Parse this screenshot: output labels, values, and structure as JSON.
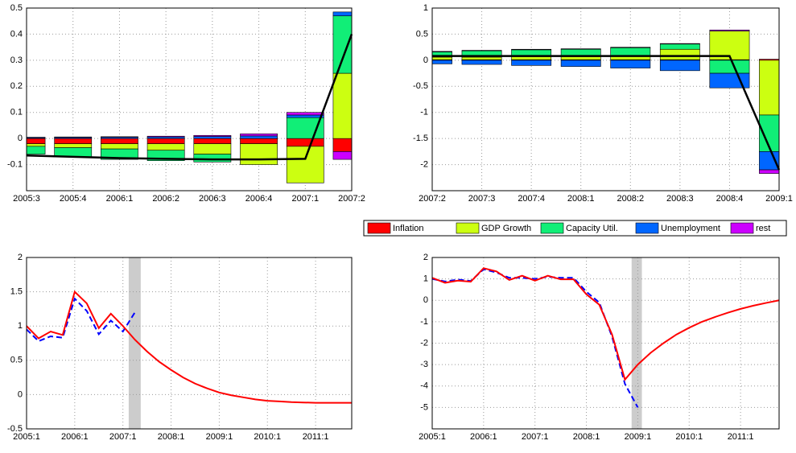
{
  "chart_data": [
    {
      "type": "bar",
      "stacked": true,
      "grid": true,
      "categories": [
        "2005:3",
        "2005:4",
        "2006:1",
        "2006:2",
        "2006:3",
        "2006:4",
        "2007:1",
        "2007:2"
      ],
      "series": [
        {
          "name": "Inflation",
          "color": "#ff0000",
          "values": [
            -0.02,
            -0.02,
            -0.02,
            -0.02,
            -0.02,
            -0.02,
            -0.03,
            -0.05
          ]
        },
        {
          "name": "GDP Growth",
          "color": "#ccff11",
          "values": [
            -0.01,
            -0.015,
            -0.02,
            -0.025,
            -0.04,
            -0.08,
            -0.14,
            0.25
          ]
        },
        {
          "name": "Capacity Util.",
          "color": "#11ee77",
          "values": [
            -0.03,
            -0.035,
            -0.04,
            -0.04,
            -0.03,
            0,
            0.08,
            0.22
          ]
        },
        {
          "name": "Unemployment",
          "color": "#0066ff",
          "values": [
            0.003,
            0.004,
            0.005,
            0.006,
            0.008,
            0.01,
            0.01,
            0.015
          ]
        },
        {
          "name": "rest",
          "color": "#cc00ff",
          "values": [
            0.002,
            0.002,
            0.002,
            0.003,
            0.004,
            0.008,
            0.01,
            -0.03
          ]
        }
      ],
      "line": {
        "color": "#000000",
        "values": [
          -0.065,
          -0.07,
          -0.075,
          -0.078,
          -0.08,
          -0.08,
          -0.078,
          0.4
        ]
      },
      "ylim": [
        -0.2,
        0.5
      ],
      "yticks": [
        -0.1,
        0,
        0.1,
        0.2,
        0.3,
        0.4,
        0.5
      ]
    },
    {
      "type": "bar",
      "stacked": true,
      "grid": true,
      "categories": [
        "2007:2",
        "2007:3",
        "2007:4",
        "2008:1",
        "2008:2",
        "2008:3",
        "2008:4",
        "2009:1"
      ],
      "series": [
        {
          "color": "#ff0000",
          "values": [
            0.01,
            0.01,
            0.01,
            0.01,
            0.01,
            0.01,
            0.01,
            0.02
          ]
        },
        {
          "color": "#ccff11",
          "values": [
            0.05,
            0.05,
            0.06,
            0.06,
            0.08,
            0.2,
            0.55,
            -1.05
          ]
        },
        {
          "color": "#11ee77",
          "values": [
            0.1,
            0.12,
            0.13,
            0.14,
            0.15,
            0.1,
            -0.25,
            -0.7
          ]
        },
        {
          "color": "#0066ff",
          "values": [
            -0.07,
            -0.08,
            -0.1,
            -0.12,
            -0.15,
            -0.2,
            -0.28,
            -0.35
          ]
        },
        {
          "color": "#cc00ff",
          "values": [
            0.01,
            0.01,
            0.01,
            0.01,
            0.01,
            0.01,
            0.02,
            -0.07
          ]
        }
      ],
      "line": {
        "color": "#000000",
        "values": [
          0.08,
          0.08,
          0.08,
          0.08,
          0.08,
          0.08,
          0.08,
          -2.1
        ]
      },
      "ylim": [
        -2.5,
        1
      ],
      "yticks": [
        -2,
        -1.5,
        -1,
        -0.5,
        0,
        0.5,
        1
      ]
    },
    {
      "type": "line",
      "grid": true,
      "x": [
        2005,
        2005.25,
        2005.5,
        2005.75,
        2006,
        2006.25,
        2006.5,
        2006.75,
        2007,
        2007.25,
        2007.5,
        2007.75,
        2008,
        2008.25,
        2008.5,
        2008.75,
        2009,
        2009.25,
        2009.5,
        2009.75,
        2010,
        2010.25,
        2010.5,
        2010.75,
        2011,
        2011.25,
        2011.5,
        2011.75
      ],
      "series": [
        {
          "color": "#0000ff",
          "dashed": true,
          "values": [
            0.95,
            0.78,
            0.85,
            0.83,
            1.4,
            1.22,
            0.88,
            1.08,
            0.92,
            1.2,
            null,
            null,
            null,
            null,
            null,
            null,
            null,
            null,
            null,
            null,
            null,
            null,
            null,
            null,
            null,
            null,
            null,
            null
          ]
        },
        {
          "color": "#ff0000",
          "values": [
            1.0,
            0.82,
            0.92,
            0.87,
            1.5,
            1.33,
            0.97,
            1.18,
            1.0,
            0.8,
            0.63,
            0.48,
            0.36,
            0.25,
            0.16,
            0.09,
            0.03,
            -0.01,
            -0.04,
            -0.07,
            -0.09,
            -0.1,
            -0.11,
            -0.115,
            -0.12,
            -0.12,
            -0.12,
            -0.12
          ]
        }
      ],
      "shade": [
        2007.12,
        2007.37
      ],
      "xlim": [
        2005,
        2011.75
      ],
      "xticks": [
        {
          "value": 2005,
          "label": "2005:1"
        },
        {
          "value": 2006,
          "label": "2006:1"
        },
        {
          "value": 2007,
          "label": "2007:1"
        },
        {
          "value": 2008,
          "label": "2008:1"
        },
        {
          "value": 2009,
          "label": "2009:1"
        },
        {
          "value": 2010,
          "label": "2010:1"
        },
        {
          "value": 2011,
          "label": "2011:1"
        }
      ],
      "ylim": [
        -0.5,
        2
      ],
      "yticks": [
        -0.5,
        0,
        0.5,
        1,
        1.5,
        2
      ]
    },
    {
      "type": "line",
      "grid": true,
      "x": [
        2005,
        2005.25,
        2005.5,
        2005.75,
        2006,
        2006.25,
        2006.5,
        2006.75,
        2007,
        2007.25,
        2007.5,
        2007.75,
        2008,
        2008.25,
        2008.5,
        2008.75,
        2009,
        2009.25,
        2009.5,
        2009.75,
        2010,
        2010.25,
        2010.5,
        2010.75,
        2011,
        2011.25,
        2011.5,
        2011.75
      ],
      "series": [
        {
          "color": "#0000ff",
          "dashed": true,
          "values": [
            1.0,
            0.88,
            0.97,
            0.9,
            1.45,
            1.3,
            1.05,
            1.05,
            1.0,
            1.1,
            1.05,
            1.05,
            0.4,
            -0.1,
            -1.7,
            -3.9,
            -5.0,
            null,
            null,
            null,
            null,
            null,
            null,
            null,
            null,
            null,
            null,
            null
          ]
        },
        {
          "color": "#ff0000",
          "values": [
            1.05,
            0.82,
            0.92,
            0.87,
            1.5,
            1.35,
            0.95,
            1.15,
            0.92,
            1.15,
            0.98,
            0.98,
            0.28,
            -0.2,
            -1.6,
            -3.7,
            -3.0,
            -2.45,
            -2.0,
            -1.6,
            -1.28,
            -1.0,
            -0.78,
            -0.58,
            -0.4,
            -0.25,
            -0.12,
            0.0
          ]
        }
      ],
      "shade": [
        2008.88,
        2009.08
      ],
      "xlim": [
        2005,
        2011.75
      ],
      "xticks": [
        {
          "value": 2005,
          "label": "2005:1"
        },
        {
          "value": 2006,
          "label": "2006:1"
        },
        {
          "value": 2007,
          "label": "2007:1"
        },
        {
          "value": 2008,
          "label": "2008:1"
        },
        {
          "value": 2009,
          "label": "2009:1"
        },
        {
          "value": 2010,
          "label": "2010:1"
        },
        {
          "value": 2011,
          "label": "2011:1"
        }
      ],
      "ylim": [
        -6,
        2
      ],
      "yticks": [
        -5,
        -4,
        -3,
        -2,
        -1,
        0,
        1,
        2
      ]
    }
  ]
}
